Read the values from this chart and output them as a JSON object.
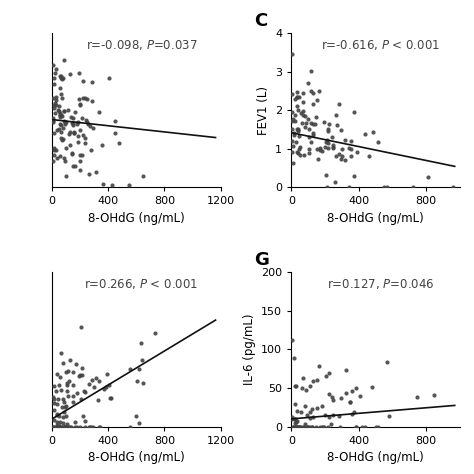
{
  "panels": [
    {
      "label": "",
      "annotation": "r=-0.098, P=0.037",
      "p_lt": false,
      "xlabel": "8-OHdG (ng/mL)",
      "ylabel": "",
      "xlim": [
        0,
        1200
      ],
      "ylim": [
        0,
        3.0
      ],
      "xticks": [
        0,
        400,
        800,
        1200
      ],
      "yticks": [],
      "slope": -0.0003,
      "intercept": 1.32,
      "r_val": -0.098,
      "seed": 11
    },
    {
      "label": "C",
      "annotation": "r=-0.616, P < 0.001",
      "p_lt": true,
      "xlabel": "8-OHdG (ng/mL)",
      "ylabel": "FEV1 (L)",
      "xlim": [
        0,
        1000
      ],
      "ylim": [
        0,
        4
      ],
      "xticks": [
        0,
        400,
        800
      ],
      "yticks": [
        0,
        1,
        2,
        3,
        4
      ],
      "slope": -0.0009,
      "intercept": 1.42,
      "r_val": -0.616,
      "seed": 22
    },
    {
      "label": "",
      "annotation": "r=0.266, P < 0.001",
      "p_lt": true,
      "xlabel": "8-OHdG (ng/mL)",
      "ylabel": "",
      "xlim": [
        0,
        1200
      ],
      "ylim": [
        0,
        400
      ],
      "xticks": [
        0,
        400,
        800,
        1200
      ],
      "yticks": [],
      "slope": 0.22,
      "intercept": 20,
      "r_val": 0.266,
      "seed": 33
    },
    {
      "label": "G",
      "annotation": "r=0.127, P=0.046",
      "p_lt": false,
      "xlabel": "8-OHdG (ng/mL)",
      "ylabel": "IL-6 (pg/mL)",
      "xlim": [
        0,
        1000
      ],
      "ylim": [
        0,
        200
      ],
      "xticks": [
        0,
        400,
        800
      ],
      "yticks": [
        0,
        50,
        100,
        150,
        200
      ],
      "slope": 0.018,
      "intercept": 10,
      "r_val": 0.127,
      "seed": 44
    }
  ],
  "marker_color": "#444444",
  "marker_size": 9,
  "line_color": "#111111",
  "bg_color": "#ffffff",
  "ann_fontsize": 8.5,
  "panel_label_fontsize": 13,
  "axis_label_fontsize": 8.5,
  "tick_fontsize": 8
}
